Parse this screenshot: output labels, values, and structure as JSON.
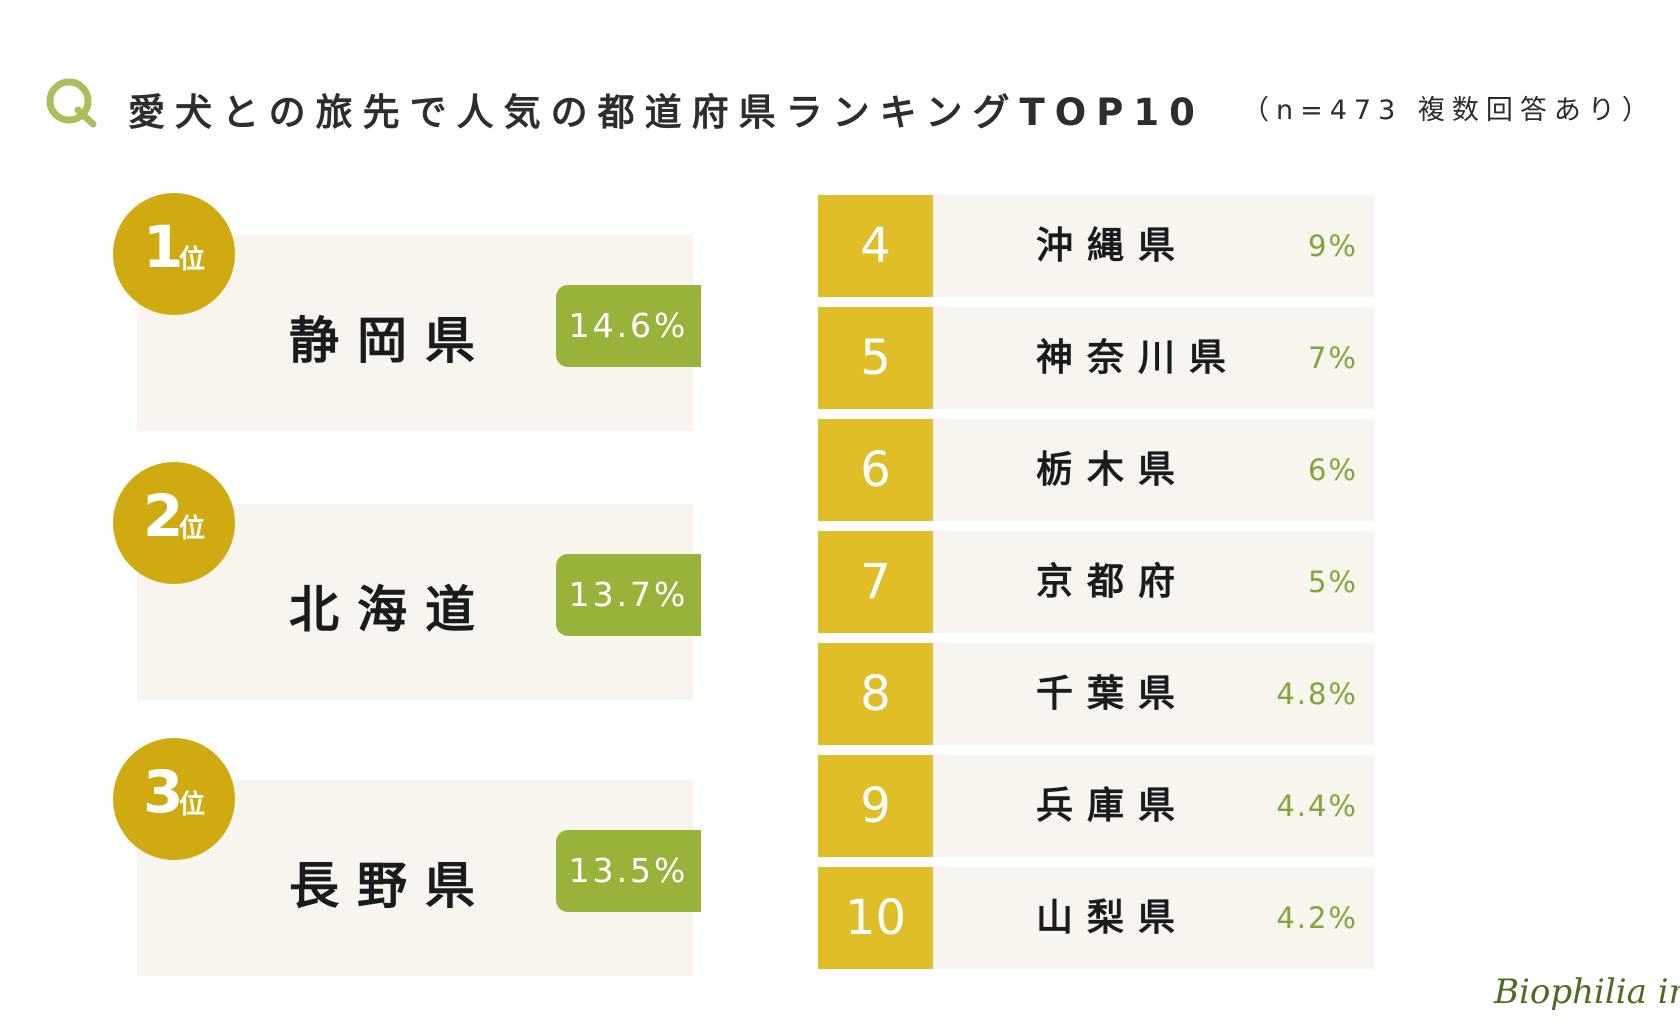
{
  "header": {
    "title": "愛犬との旅先で人気の都道府県ランキングTOP10",
    "note": "（n=473 複数回答あり）",
    "q_icon": "Q"
  },
  "top3": [
    {
      "rank": "1",
      "suffix": "位",
      "prefecture": "静岡県",
      "percent": "14.6%"
    },
    {
      "rank": "2",
      "suffix": "位",
      "prefecture": "北海道",
      "percent": "13.7%"
    },
    {
      "rank": "3",
      "suffix": "位",
      "prefecture": "長野県",
      "percent": "13.5%"
    }
  ],
  "list": [
    {
      "rank": "4",
      "prefecture": "沖縄県",
      "percent": "9%"
    },
    {
      "rank": "5",
      "prefecture": "神奈川県",
      "percent": "7%"
    },
    {
      "rank": "6",
      "prefecture": "栃木県",
      "percent": "6%"
    },
    {
      "rank": "7",
      "prefecture": "京都府",
      "percent": "5%"
    },
    {
      "rank": "8",
      "prefecture": "千葉県",
      "percent": "4.8%"
    },
    {
      "rank": "9",
      "prefecture": "兵庫県",
      "percent": "4.4%"
    },
    {
      "rank": "10",
      "prefecture": "山梨県",
      "percent": "4.2%"
    }
  ],
  "logo": "Biophilia inc.",
  "colors": {
    "medal": "#cfaa10",
    "rank_box": "#dfbe28",
    "percent_badge": "#98b33a",
    "percent_text": "#7fa63a",
    "panel": "#f7f5ed",
    "q_icon": "#a9bf5a"
  },
  "chart_data": {
    "type": "table",
    "title": "愛犬との旅先で人気の都道府県ランキングTOP10",
    "subtitle": "（n=473 複数回答あり）",
    "categories": [
      "静岡県",
      "北海道",
      "長野県",
      "沖縄県",
      "神奈川県",
      "栃木県",
      "京都府",
      "千葉県",
      "兵庫県",
      "山梨県"
    ],
    "ranks": [
      1,
      2,
      3,
      4,
      5,
      6,
      7,
      8,
      9,
      10
    ],
    "values": [
      14.6,
      13.7,
      13.5,
      9,
      7,
      6,
      5,
      4.8,
      4.4,
      4.2
    ],
    "unit": "%"
  }
}
